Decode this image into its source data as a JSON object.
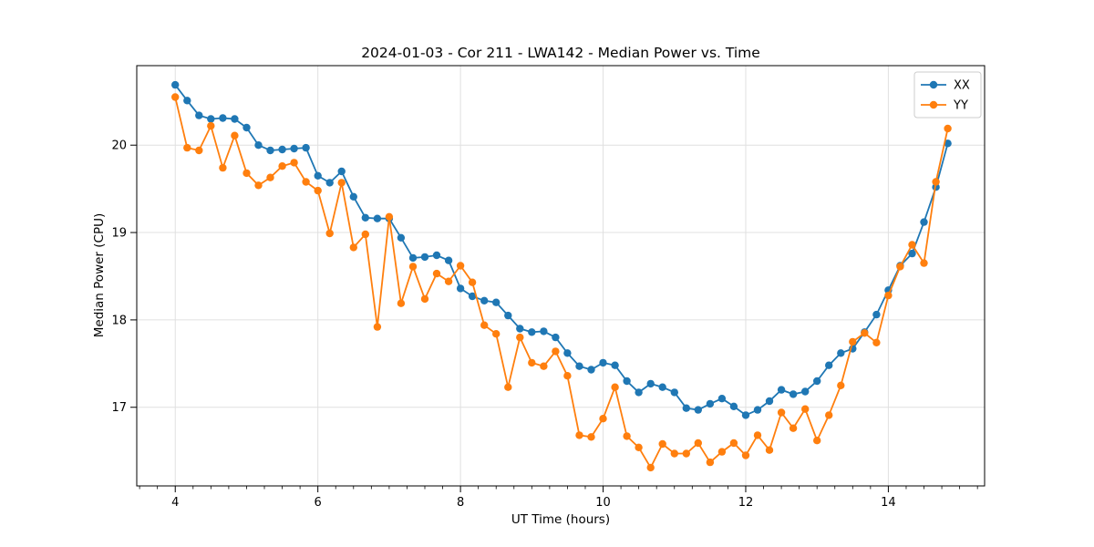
{
  "chart_data": {
    "type": "line",
    "title": "2024-01-03 - Cor 211 - LWA142 - Median Power vs. Time",
    "xlabel": "UT Time (hours)",
    "ylabel": "Median Power (CPU)",
    "xlim": [
      3.46,
      15.35
    ],
    "ylim": [
      16.1,
      20.91
    ],
    "x_ticks": [
      4,
      6,
      8,
      10,
      12,
      14
    ],
    "y_ticks": [
      17,
      18,
      19,
      20
    ],
    "x_minor_step": 0.25,
    "grid": true,
    "grid_color": "#e0e0e0",
    "spine_color": "#000000",
    "legend": {
      "position": "upper right",
      "entries": [
        {
          "label": "XX",
          "color": "#1f77b4"
        },
        {
          "label": "YY",
          "color": "#ff7f0e"
        }
      ]
    },
    "x_start": 4.0,
    "x_step_hours": 0.166667,
    "series": [
      {
        "name": "XX",
        "color": "#1f77b4",
        "values": [
          20.69,
          20.51,
          20.34,
          20.3,
          20.31,
          20.3,
          20.2,
          20.0,
          19.94,
          19.95,
          19.96,
          19.97,
          19.65,
          19.57,
          19.7,
          19.41,
          19.17,
          19.16,
          19.16,
          18.94,
          18.71,
          18.72,
          18.74,
          18.68,
          18.36,
          18.27,
          18.22,
          18.2,
          18.05,
          17.9,
          17.86,
          17.87,
          17.8,
          17.62,
          17.47,
          17.43,
          17.51,
          17.48,
          17.3,
          17.17,
          17.27,
          17.23,
          17.17,
          16.99,
          16.97,
          17.04,
          17.1,
          17.01,
          16.91,
          16.97,
          17.07,
          17.2,
          17.15,
          17.18,
          17.3,
          17.48,
          17.62,
          17.67,
          17.86,
          18.06,
          18.34,
          18.62,
          18.76,
          19.12,
          19.52,
          20.02
        ]
      },
      {
        "name": "YY",
        "color": "#ff7f0e",
        "values": [
          20.55,
          19.97,
          19.94,
          20.22,
          19.74,
          20.11,
          19.68,
          19.54,
          19.63,
          19.76,
          19.8,
          19.58,
          19.48,
          18.99,
          19.57,
          18.83,
          18.98,
          17.92,
          19.18,
          18.19,
          18.61,
          18.24,
          18.53,
          18.44,
          18.62,
          18.43,
          17.94,
          17.84,
          17.23,
          17.8,
          17.51,
          17.47,
          17.64,
          17.36,
          16.68,
          16.66,
          16.87,
          17.23,
          16.67,
          16.54,
          16.31,
          16.58,
          16.47,
          16.47,
          16.59,
          16.37,
          16.49,
          16.59,
          16.45,
          16.68,
          16.51,
          16.94,
          16.76,
          16.98,
          16.62,
          16.91,
          17.25,
          17.75,
          17.85,
          17.74,
          18.28,
          18.61,
          18.86,
          18.65,
          19.58,
          20.19
        ]
      }
    ]
  }
}
